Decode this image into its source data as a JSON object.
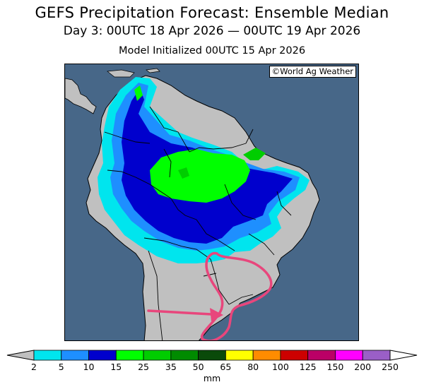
{
  "header": {
    "title": "GEFS Precipitation Forecast: Ensemble Median",
    "valid_period": "Day 3: 00UTC 18 Apr 2026 — 00UTC 19 Apr 2026",
    "initialized": "Model Initialized 00UTC 15 Apr 2026"
  },
  "map": {
    "credit": "©World Ag Weather",
    "colors": {
      "ocean": "#476788",
      "land": "#c0c0c0",
      "borders": "#000000",
      "annotation": "#e8467c"
    }
  },
  "legend": {
    "units": "mm",
    "ticks": [
      "2",
      "5",
      "10",
      "15",
      "25",
      "35",
      "50",
      "65",
      "80",
      "100",
      "125",
      "150",
      "200",
      "250"
    ],
    "colors": [
      "#00e5ee",
      "#1e8fff",
      "#0000cd",
      "#00ff00",
      "#00cd00",
      "#008b00",
      "#0a4a0a",
      "#ffff00",
      "#ff8c00",
      "#cd0000",
      "#bb0066",
      "#ff00ff",
      "#9a5fc7"
    ],
    "end_colors": {
      "low": "#c0c0c0",
      "high": "#ffffff"
    }
  }
}
